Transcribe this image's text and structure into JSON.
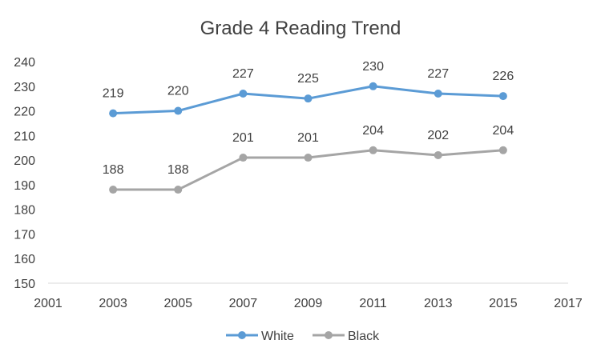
{
  "chart_data": {
    "type": "line",
    "title": "Grade 4 Reading Trend",
    "x": [
      2003,
      2005,
      2007,
      2009,
      2011,
      2013,
      2015
    ],
    "xlim": [
      2001,
      2017
    ],
    "x_ticks": [
      2001,
      2003,
      2005,
      2007,
      2009,
      2011,
      2013,
      2015,
      2017
    ],
    "ylim": [
      150,
      240
    ],
    "y_ticks": [
      150,
      160,
      170,
      180,
      190,
      200,
      210,
      220,
      230,
      240
    ],
    "grid": false,
    "legend_position": "bottom",
    "series": [
      {
        "name": "White",
        "color": "#5b9bd5",
        "values": [
          219,
          220,
          227,
          225,
          230,
          227,
          226
        ]
      },
      {
        "name": "Black",
        "color": "#a5a5a5",
        "values": [
          188,
          188,
          201,
          201,
          204,
          202,
          204
        ]
      }
    ]
  }
}
